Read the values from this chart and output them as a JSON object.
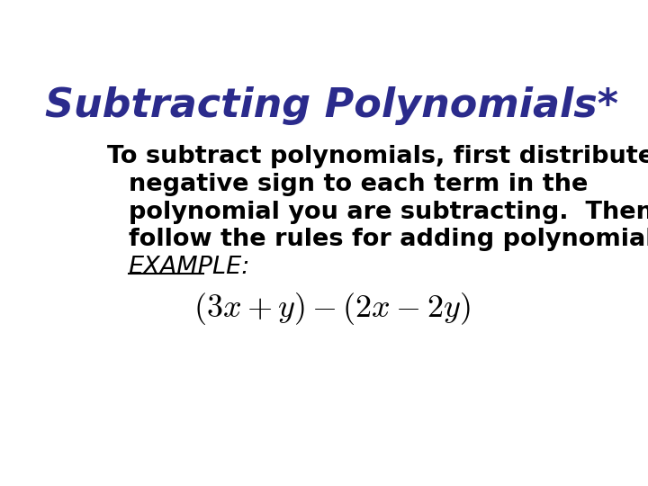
{
  "background_color": "#ffffff",
  "title": "Subtracting Polynomials*",
  "title_color": "#2B2B8C",
  "title_fontsize": 32,
  "body_lines": [
    "To subtract polynomials, first distribute the",
    "  negative sign to each term in the",
    "  polynomial you are subtracting.  Then",
    "  follow the rules for adding polynomials.",
    "  EXAMPLE:"
  ],
  "body_color": "#000000",
  "body_fontsize": 19.5,
  "math_fontsize": 26,
  "underline_example": true
}
